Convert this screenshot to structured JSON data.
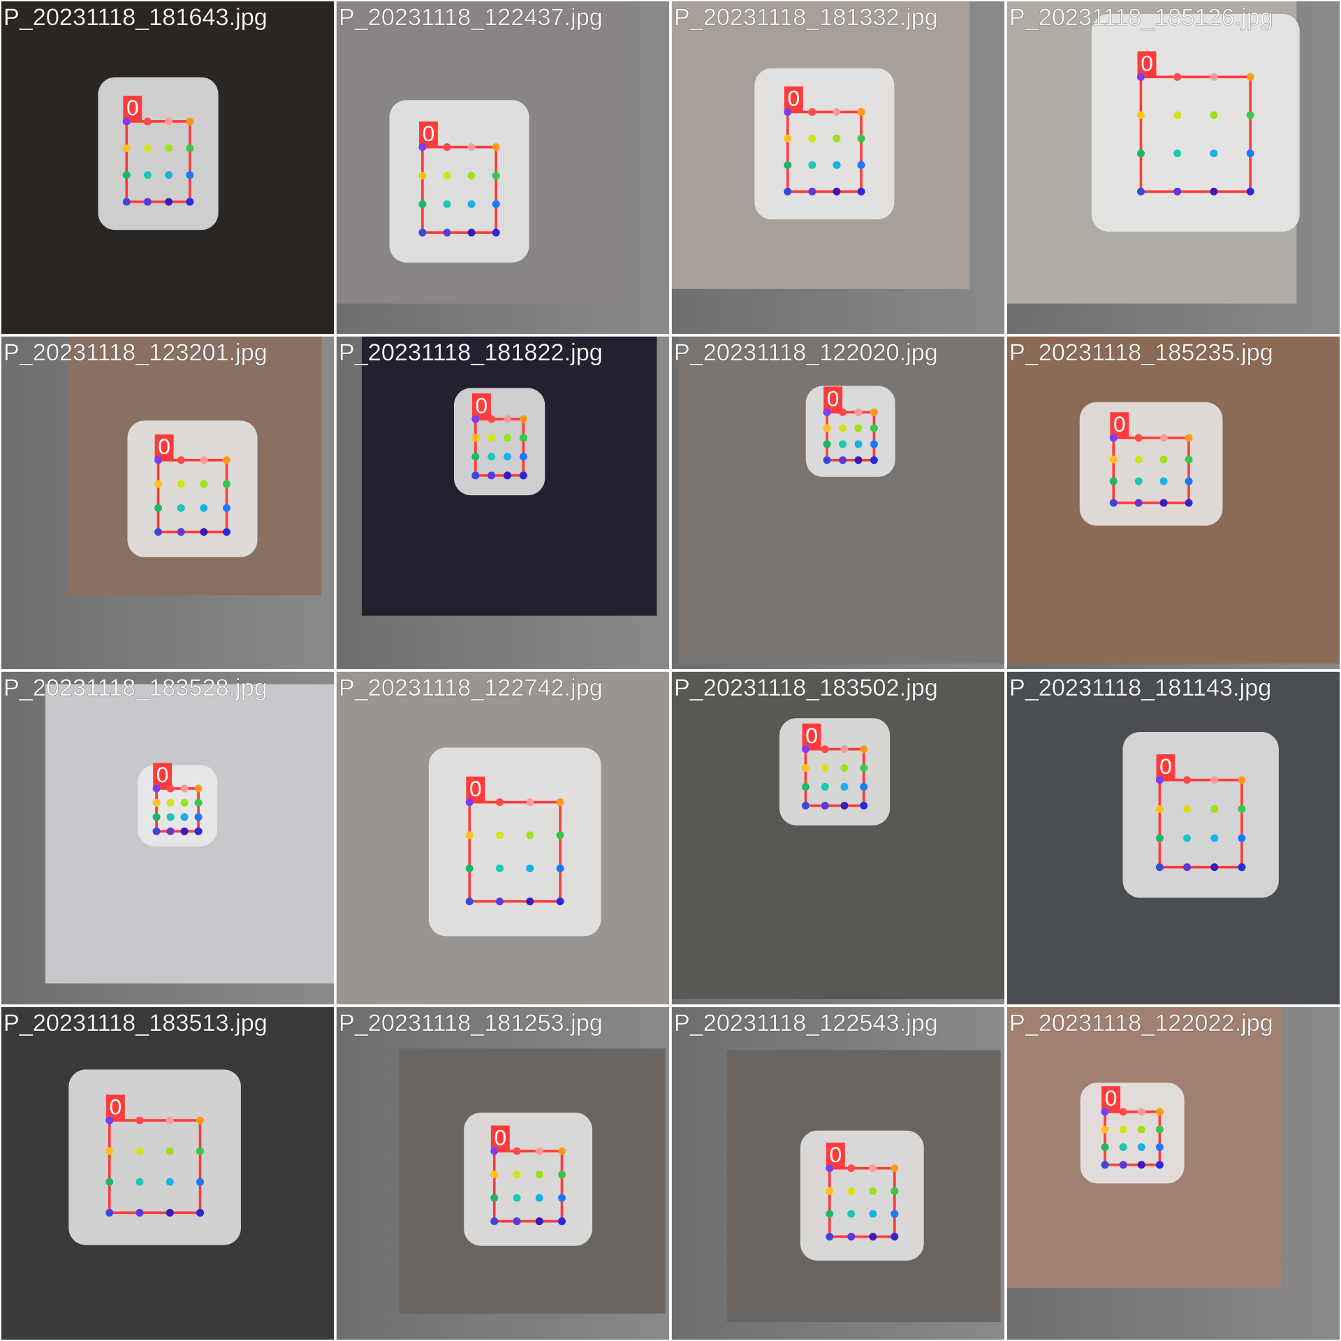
{
  "tiles": [
    {
      "filename": "P_20231118_181643.jpg",
      "label": "0"
    },
    {
      "filename": "P_20231118_122437.jpg",
      "label": "0"
    },
    {
      "filename": "P_20231118_181332.jpg",
      "label": "0"
    },
    {
      "filename": "P_20231118_185126.jpg",
      "label": "0"
    },
    {
      "filename": "P_20231118_123201.jpg",
      "label": "0"
    },
    {
      "filename": "P_20231118_181822.jpg",
      "label": "0"
    },
    {
      "filename": "P_20231118_122020.jpg",
      "label": "0"
    },
    {
      "filename": "P_20231118_185235.jpg",
      "label": "0"
    },
    {
      "filename": "P_20231118_183528.jpg",
      "label": "0"
    },
    {
      "filename": "P_20231118_122742.jpg",
      "label": "0"
    },
    {
      "filename": "P_20231118_183502.jpg",
      "label": "0"
    },
    {
      "filename": "P_20231118_181143.jpg",
      "label": "0"
    },
    {
      "filename": "P_20231118_183513.jpg",
      "label": "0"
    },
    {
      "filename": "P_20231118_181253.jpg",
      "label": "0"
    },
    {
      "filename": "P_20231118_122543.jpg",
      "label": "0"
    },
    {
      "filename": "P_20231118_122022.jpg",
      "label": "0"
    }
  ]
}
